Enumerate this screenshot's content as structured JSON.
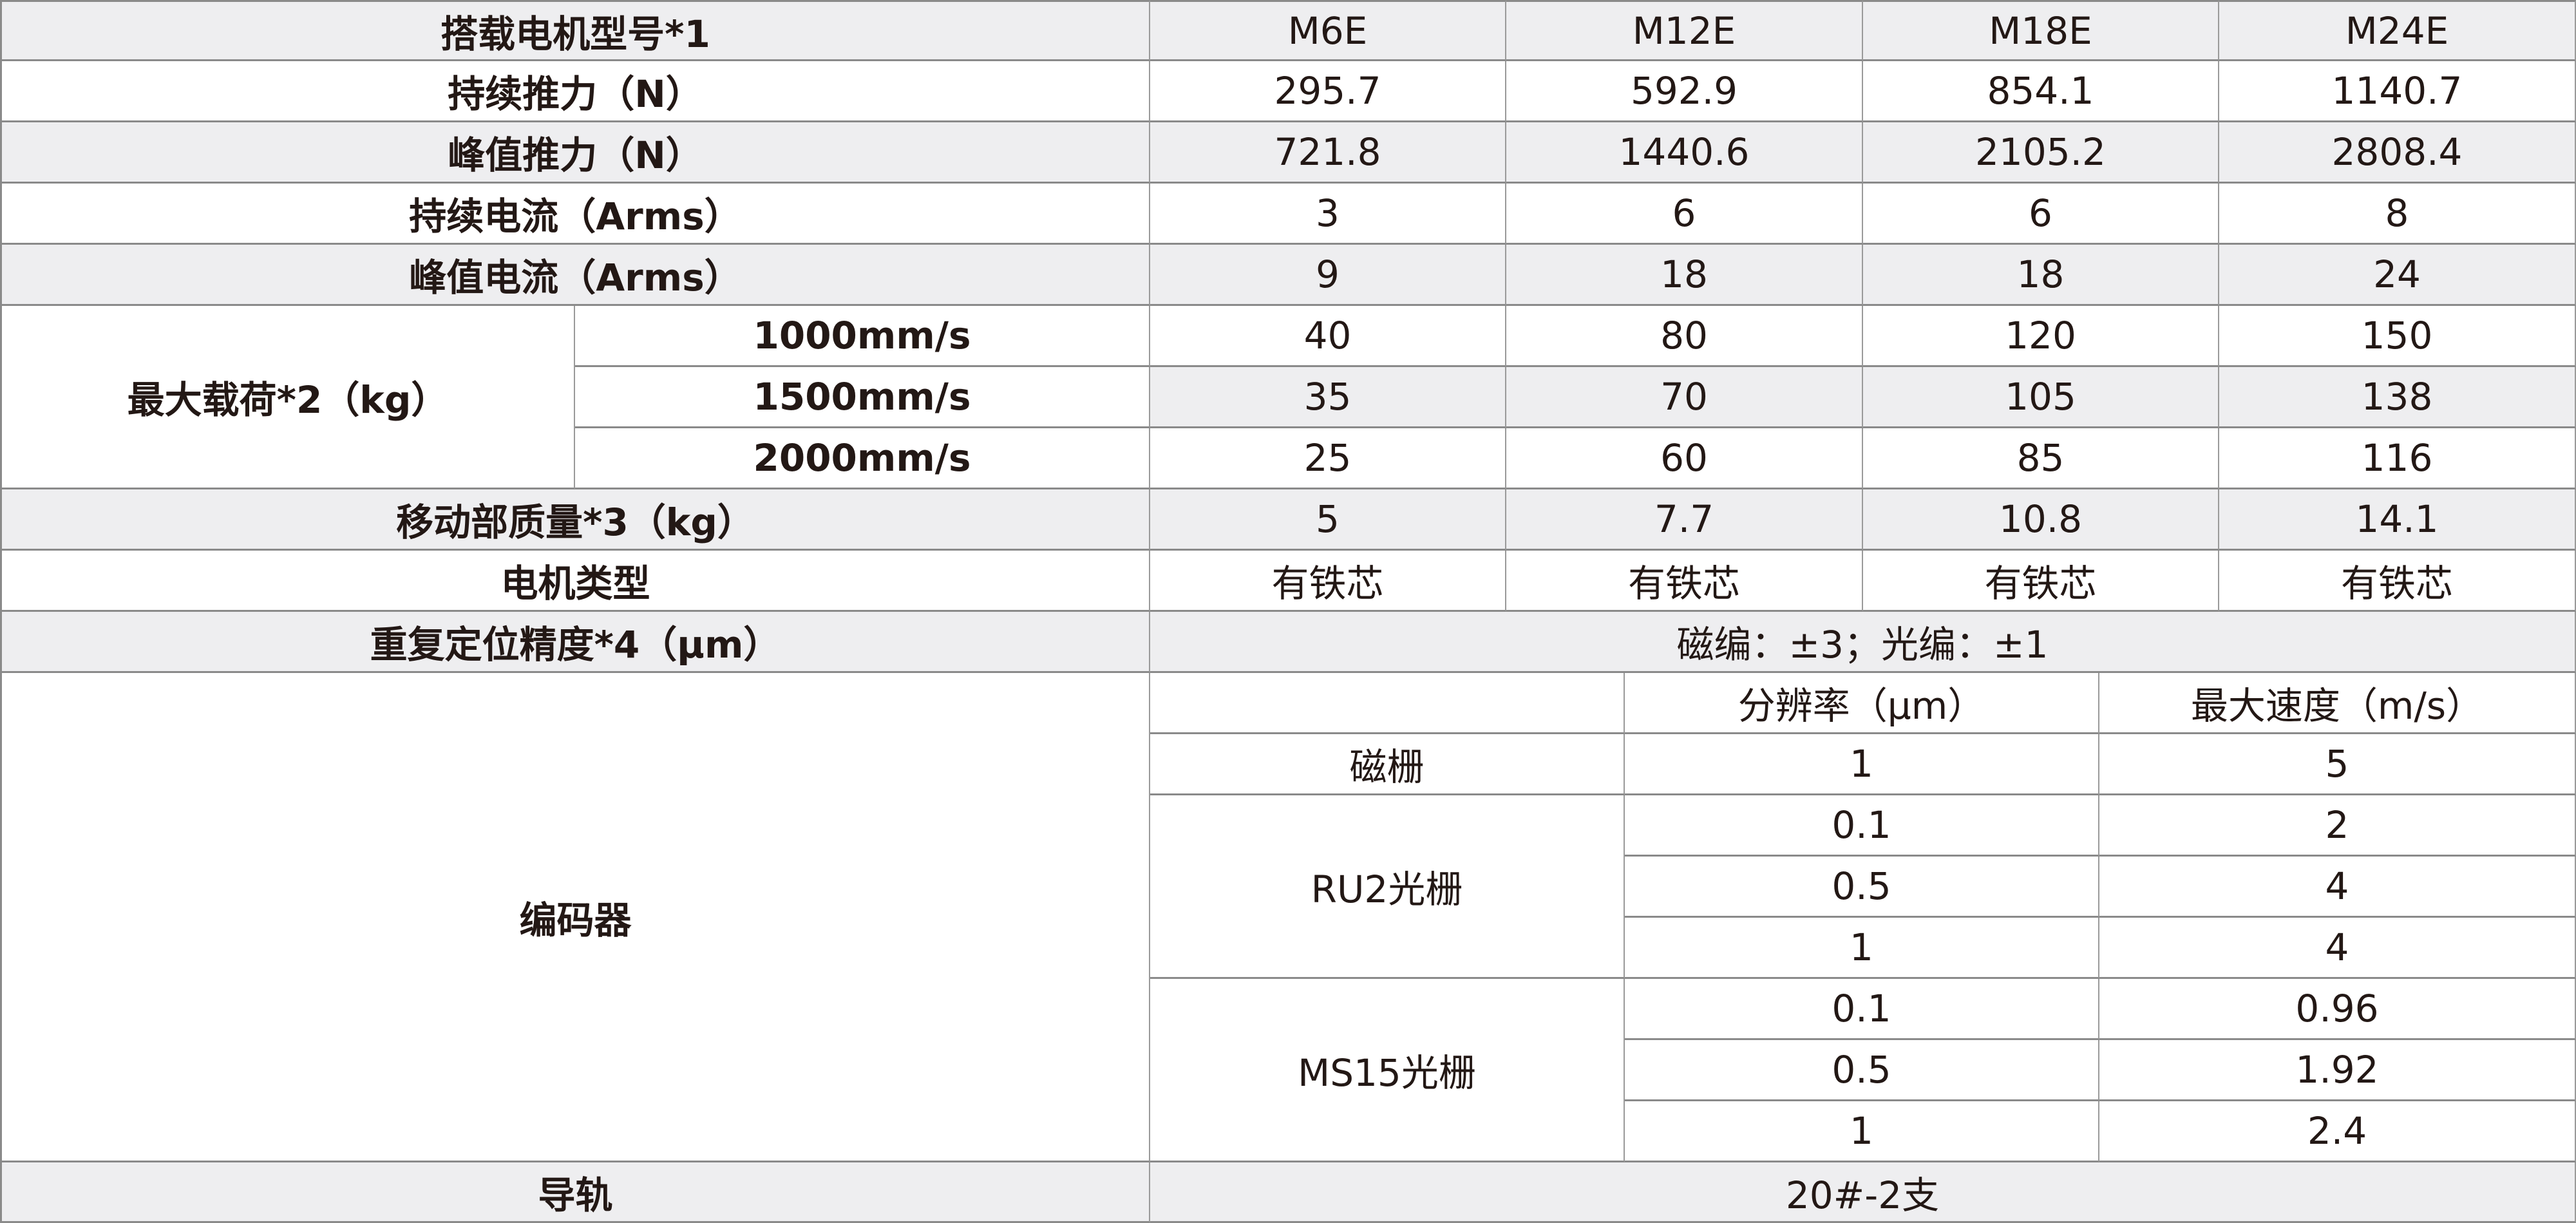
{
  "header": {
    "label": "搭载电机型号*1",
    "models": [
      "M6E",
      "M12E",
      "M18E",
      "M24E"
    ]
  },
  "continuous_thrust": {
    "label": "持续推力（N）",
    "values": [
      "295.7",
      "592.9",
      "854.1",
      "1140.7"
    ]
  },
  "peak_thrust": {
    "label": "峰值推力（N）",
    "values": [
      "721.8",
      "1440.6",
      "2105.2",
      "2808.4"
    ]
  },
  "continuous_current": {
    "label": "持续电流（Arms）",
    "values": [
      "3",
      "6",
      "6",
      "8"
    ]
  },
  "peak_current": {
    "label": "峰值电流（Arms）",
    "values": [
      "9",
      "18",
      "18",
      "24"
    ]
  },
  "max_load": {
    "label": "最大载荷*2（kg）",
    "speeds": [
      {
        "label": "1000mm/s",
        "values": [
          "40",
          "80",
          "120",
          "150"
        ]
      },
      {
        "label": "1500mm/s",
        "values": [
          "35",
          "70",
          "105",
          "138"
        ]
      },
      {
        "label": "2000mm/s",
        "values": [
          "25",
          "60",
          "85",
          "116"
        ]
      }
    ]
  },
  "moving_mass": {
    "label": "移动部质量*3（kg）",
    "values": [
      "5",
      "7.7",
      "10.8",
      "14.1"
    ]
  },
  "motor_type": {
    "label": "电机类型",
    "values": [
      "有铁芯",
      "有铁芯",
      "有铁芯",
      "有铁芯"
    ]
  },
  "repeatability": {
    "label": "重复定位精度*4（μm）",
    "value": "磁编：±3；光编：±1"
  },
  "encoder": {
    "label": "编码器",
    "columns": [
      "分辨率（μm）",
      "最大速度（m/s）"
    ],
    "groups": [
      {
        "name": "磁栅",
        "rows": [
          [
            "1",
            "5"
          ]
        ]
      },
      {
        "name": "RU2光栅",
        "rows": [
          [
            "0.1",
            "2"
          ],
          [
            "0.5",
            "4"
          ],
          [
            "1",
            "4"
          ]
        ]
      },
      {
        "name": "MS15光栅",
        "rows": [
          [
            "0.1",
            "0.96"
          ],
          [
            "0.5",
            "1.92"
          ],
          [
            "1",
            "2.4"
          ]
        ]
      }
    ]
  },
  "guide_rail": {
    "label": "导轨",
    "value": "20#-2支"
  }
}
